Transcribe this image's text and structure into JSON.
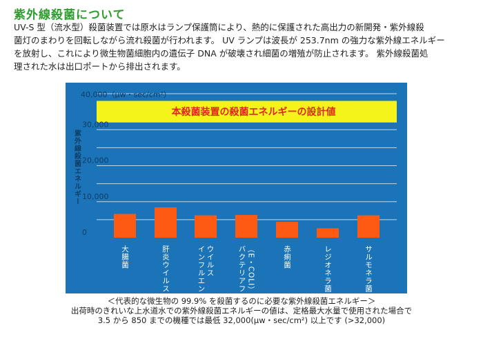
{
  "heading": "紫外線殺菌について",
  "intro_lines": [
    "UV-S 型（流水型）殺菌装置では原水はランプ保護筒により、熱的に保護された高出力の新開発・紫外線殺",
    "菌灯のまわりを回転しながら流れ殺菌が行われます。 UV ランプは波長が 253.7nm の強力な紫外線エネルギー",
    "を放射し、これにより微生物菌細胞内の遺伝子 DNA が破壊され細菌の増殖が防止されます。 紫外線殺菌処",
    "理された水は出口ポートから排出されます。"
  ],
  "chart_data": {
    "type": "bar",
    "unit_label": "40,000（μw・sec/cm²）",
    "ylabel": "紫外線殺菌エネルギー",
    "ylim": [
      0,
      40000
    ],
    "yticks": [
      {
        "value": 0,
        "label": "0"
      },
      {
        "value": 10000,
        "label": "10,000"
      },
      {
        "value": 20000,
        "label": "20,000"
      },
      {
        "value": 30000,
        "label": "30,000"
      }
    ],
    "design_band": {
      "from": 32000,
      "to": 38000,
      "label": "本殺菌装置の殺菌エネルギーの設計値"
    },
    "categories": [
      "大腸菌",
      "肝炎ウイルス",
      "インフルエンザウイルス",
      "バクテリアファージ（E・COLI）",
      "赤痢菌",
      "レジオネラ菌",
      "サルモネラ菌"
    ],
    "category_columns": [
      [
        "大腸菌"
      ],
      [
        "肝炎ウイルス"
      ],
      [
        "インフルエンザ",
        "ウイルス"
      ],
      [
        "バクテリアファージ",
        "（E・COLI）"
      ],
      [
        "赤痢菌"
      ],
      [
        "レジオネラ菌"
      ],
      [
        "サルモネラ菌"
      ]
    ],
    "values": [
      6600,
      8400,
      6200,
      6300,
      4400,
      2600,
      6200
    ],
    "colors": {
      "panel": "#1c74b8",
      "bar": "#ff5a14",
      "band": "#f4f41a",
      "band_text": "#e0281e",
      "grid": "#cfe4f6",
      "axis_text": "#0e3d66",
      "cat_text": "#ffffff"
    }
  },
  "captions": [
    "＜代表的な微生物の 99.9% を殺菌するのに必要な紫外線殺菌エネルギー＞",
    "出荷時のきれいな上水道水での紫外線殺菌エネルギーの値は、定格最大水量で使用された場合で",
    "3.5 から 850 までの機種では最低 32,000(μw・sec/cm²) 以上です (>32,000)"
  ]
}
